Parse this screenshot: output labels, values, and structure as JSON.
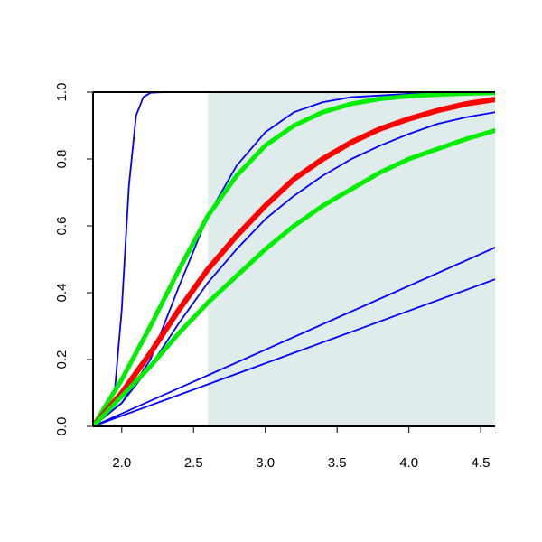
{
  "chart_data": {
    "type": "line",
    "title": "",
    "xlabel": "",
    "ylabel": "",
    "xlim": [
      1.8,
      4.6
    ],
    "ylim": [
      0.0,
      1.0
    ],
    "x_ticks": [
      2.0,
      2.5,
      3.0,
      3.5,
      4.0,
      4.5
    ],
    "x_tick_labels": [
      "2.0",
      "2.5",
      "3.0",
      "3.5",
      "4.0",
      "4.5"
    ],
    "y_ticks": [
      0.0,
      0.2,
      0.4,
      0.6,
      0.8,
      1.0
    ],
    "y_tick_labels": [
      "0.0",
      "0.2",
      "0.4",
      "0.6",
      "0.8",
      "1.0"
    ],
    "grid": false,
    "shaded_region": {
      "x_from": 2.6,
      "x_to": 4.6,
      "color": "#dfeceb"
    },
    "series": [
      {
        "color": "#0000ff",
        "width": 1.8,
        "x": [
          1.8,
          1.95,
          2.0,
          2.05,
          2.1,
          2.15,
          2.2,
          2.3,
          2.6,
          3.0,
          3.5,
          4.0,
          4.6
        ],
        "y": [
          0.0,
          0.1,
          0.35,
          0.72,
          0.93,
          0.985,
          0.998,
          1.0,
          1.0,
          1.0,
          1.0,
          1.0,
          1.0
        ]
      },
      {
        "color": "#0000ff",
        "width": 1.8,
        "x": [
          1.8,
          2.0,
          2.2,
          2.4,
          2.6,
          2.8,
          3.0,
          3.2,
          3.4,
          3.6,
          4.0,
          4.6
        ],
        "y": [
          0.0,
          0.07,
          0.2,
          0.42,
          0.63,
          0.78,
          0.88,
          0.94,
          0.97,
          0.985,
          0.995,
          1.0
        ]
      },
      {
        "color": "#0000ff",
        "width": 1.8,
        "x": [
          1.8,
          2.0,
          2.2,
          2.4,
          2.6,
          2.8,
          3.0,
          3.2,
          3.4,
          3.6,
          3.8,
          4.0,
          4.2,
          4.4,
          4.6
        ],
        "y": [
          0.0,
          0.07,
          0.18,
          0.31,
          0.43,
          0.53,
          0.62,
          0.69,
          0.75,
          0.8,
          0.84,
          0.875,
          0.905,
          0.925,
          0.94
        ]
      },
      {
        "color": "#0000ff",
        "width": 1.8,
        "x": [
          1.8,
          4.6
        ],
        "y": [
          0.0,
          0.535
        ]
      },
      {
        "color": "#0000ff",
        "width": 1.8,
        "x": [
          1.8,
          4.6
        ],
        "y": [
          0.0,
          0.44
        ]
      },
      {
        "color": "#00ee00",
        "width": 5,
        "x": [
          1.8,
          2.0,
          2.2,
          2.4,
          2.6,
          2.8,
          3.0,
          3.2,
          3.4,
          3.6,
          3.8,
          4.0,
          4.2,
          4.4,
          4.6
        ],
        "y": [
          0.0,
          0.14,
          0.3,
          0.47,
          0.63,
          0.75,
          0.84,
          0.9,
          0.94,
          0.965,
          0.98,
          0.988,
          0.993,
          0.996,
          0.998
        ]
      },
      {
        "color": "#ff0000",
        "width": 6,
        "x": [
          1.8,
          2.0,
          2.2,
          2.4,
          2.6,
          2.8,
          3.0,
          3.2,
          3.4,
          3.6,
          3.8,
          4.0,
          4.2,
          4.4,
          4.6
        ],
        "y": [
          0.0,
          0.1,
          0.22,
          0.35,
          0.47,
          0.57,
          0.66,
          0.74,
          0.8,
          0.85,
          0.89,
          0.92,
          0.945,
          0.965,
          0.978
        ]
      },
      {
        "color": "#00ee00",
        "width": 5,
        "x": [
          1.8,
          2.0,
          2.2,
          2.4,
          2.6,
          2.8,
          3.0,
          3.2,
          3.4,
          3.6,
          3.8,
          4.0,
          4.2,
          4.4,
          4.6
        ],
        "y": [
          0.0,
          0.09,
          0.18,
          0.28,
          0.37,
          0.45,
          0.53,
          0.6,
          0.66,
          0.71,
          0.76,
          0.8,
          0.83,
          0.86,
          0.885
        ]
      }
    ]
  }
}
